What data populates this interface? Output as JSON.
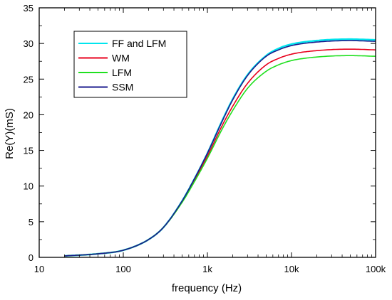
{
  "chart_data": {
    "type": "line",
    "xlabel": "frequency (Hz)",
    "ylabel": "Re(Y)(mS)",
    "xscale": "log",
    "xlim": [
      10,
      100000
    ],
    "ylim": [
      0,
      35
    ],
    "x_ticks": [
      10,
      100,
      1000,
      10000,
      100000
    ],
    "x_tick_labels": [
      "10",
      "100",
      "1k",
      "10k",
      "100k"
    ],
    "y_ticks": [
      0,
      5,
      10,
      15,
      20,
      25,
      30,
      35
    ],
    "y_tick_labels": [
      "0",
      "5",
      "10",
      "15",
      "20",
      "25",
      "30",
      "35"
    ],
    "grid": false,
    "legend_position": "top-left",
    "series": [
      {
        "name": "FF and LFM",
        "color": "#00e5ee",
        "x": [
          20,
          50,
          100,
          200,
          300,
          500,
          700,
          1000,
          1500,
          2000,
          3000,
          5000,
          7000,
          10000,
          20000,
          50000,
          100000
        ],
        "y": [
          0.2,
          0.5,
          1.0,
          2.5,
          4.2,
          7.9,
          11.0,
          14.6,
          19.2,
          22.2,
          25.6,
          28.3,
          29.3,
          29.9,
          30.4,
          30.6,
          30.5
        ]
      },
      {
        "name": "WM",
        "color": "#e8001c",
        "x": [
          20,
          50,
          100,
          200,
          300,
          500,
          700,
          1000,
          1500,
          2000,
          3000,
          5000,
          7000,
          10000,
          20000,
          50000,
          100000
        ],
        "y": [
          0.2,
          0.5,
          1.0,
          2.5,
          4.2,
          7.8,
          10.8,
          14.2,
          18.5,
          21.2,
          24.4,
          27.0,
          27.9,
          28.5,
          29.0,
          29.2,
          29.1
        ]
      },
      {
        "name": "LFM",
        "color": "#1fe01f",
        "x": [
          20,
          50,
          100,
          200,
          300,
          500,
          700,
          1000,
          1500,
          2000,
          3000,
          5000,
          7000,
          10000,
          20000,
          50000,
          100000
        ],
        "y": [
          0.2,
          0.5,
          1.0,
          2.5,
          4.2,
          7.7,
          10.6,
          13.9,
          18.0,
          20.6,
          23.7,
          26.1,
          27.0,
          27.6,
          28.1,
          28.3,
          28.2
        ]
      },
      {
        "name": "SSM",
        "color": "#1a1a8c",
        "x": [
          20,
          50,
          100,
          200,
          300,
          500,
          700,
          1000,
          1500,
          2000,
          3000,
          5000,
          7000,
          10000,
          20000,
          50000,
          100000
        ],
        "y": [
          0.2,
          0.5,
          1.0,
          2.5,
          4.2,
          7.9,
          11.0,
          14.6,
          19.1,
          22.1,
          25.5,
          28.2,
          29.1,
          29.7,
          30.2,
          30.4,
          30.3
        ]
      }
    ]
  }
}
